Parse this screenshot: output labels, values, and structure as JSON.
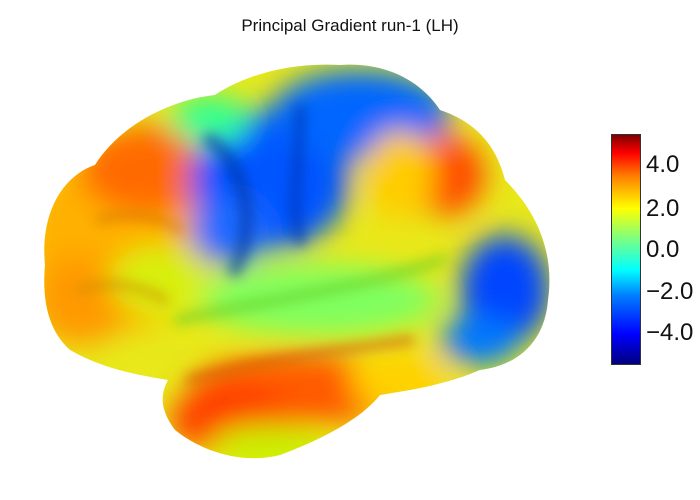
{
  "title": "Principal Gradient run-1 (LH)",
  "colorbar": {
    "colormap": "jet",
    "range": [
      -5.5,
      5.5
    ],
    "ticks": [
      "4.0",
      "2.0",
      "0.0",
      "−2.0",
      "−4.0"
    ]
  },
  "colors": {
    "high": "#ff2a00",
    "mid": "#7fff3f",
    "low": "#0044ff"
  }
}
